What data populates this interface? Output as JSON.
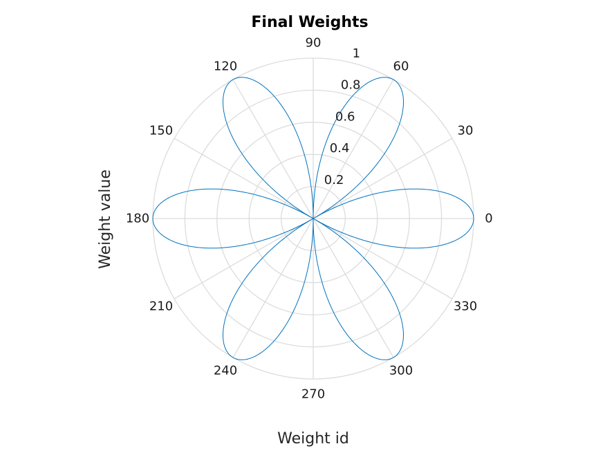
{
  "chart_data": {
    "type": "line",
    "subtype": "polar",
    "title": "Final Weights",
    "xlabel": "Weight id",
    "ylabel": "Weight value",
    "theta_ticks": [
      "0",
      "30",
      "60",
      "90",
      "120",
      "150",
      "180",
      "210",
      "240",
      "270",
      "300",
      "330"
    ],
    "r_ticks": [
      "0.2",
      "0.4",
      "0.6",
      "0.8",
      "1"
    ],
    "rlim": [
      0,
      1
    ],
    "theta_range_deg": [
      0,
      360
    ],
    "grid": true,
    "colors": {
      "series": "#0072BD",
      "grid": "#dcdcdc"
    },
    "series": [
      {
        "r_expression": "|cos(3 * theta)|",
        "theta_deg": [
          0,
          15,
          30,
          45,
          60,
          75,
          90,
          105,
          120,
          135,
          150,
          165,
          180,
          195,
          210,
          225,
          240,
          255,
          270,
          285,
          300,
          315,
          330,
          345,
          360
        ],
        "r": [
          1,
          0.707,
          0,
          0.707,
          1,
          0.707,
          0,
          0.707,
          1,
          0.707,
          0,
          0.707,
          1,
          0.707,
          0,
          0.707,
          1,
          0.707,
          0,
          0.707,
          1,
          0.707,
          0,
          0.707,
          1
        ]
      }
    ]
  }
}
